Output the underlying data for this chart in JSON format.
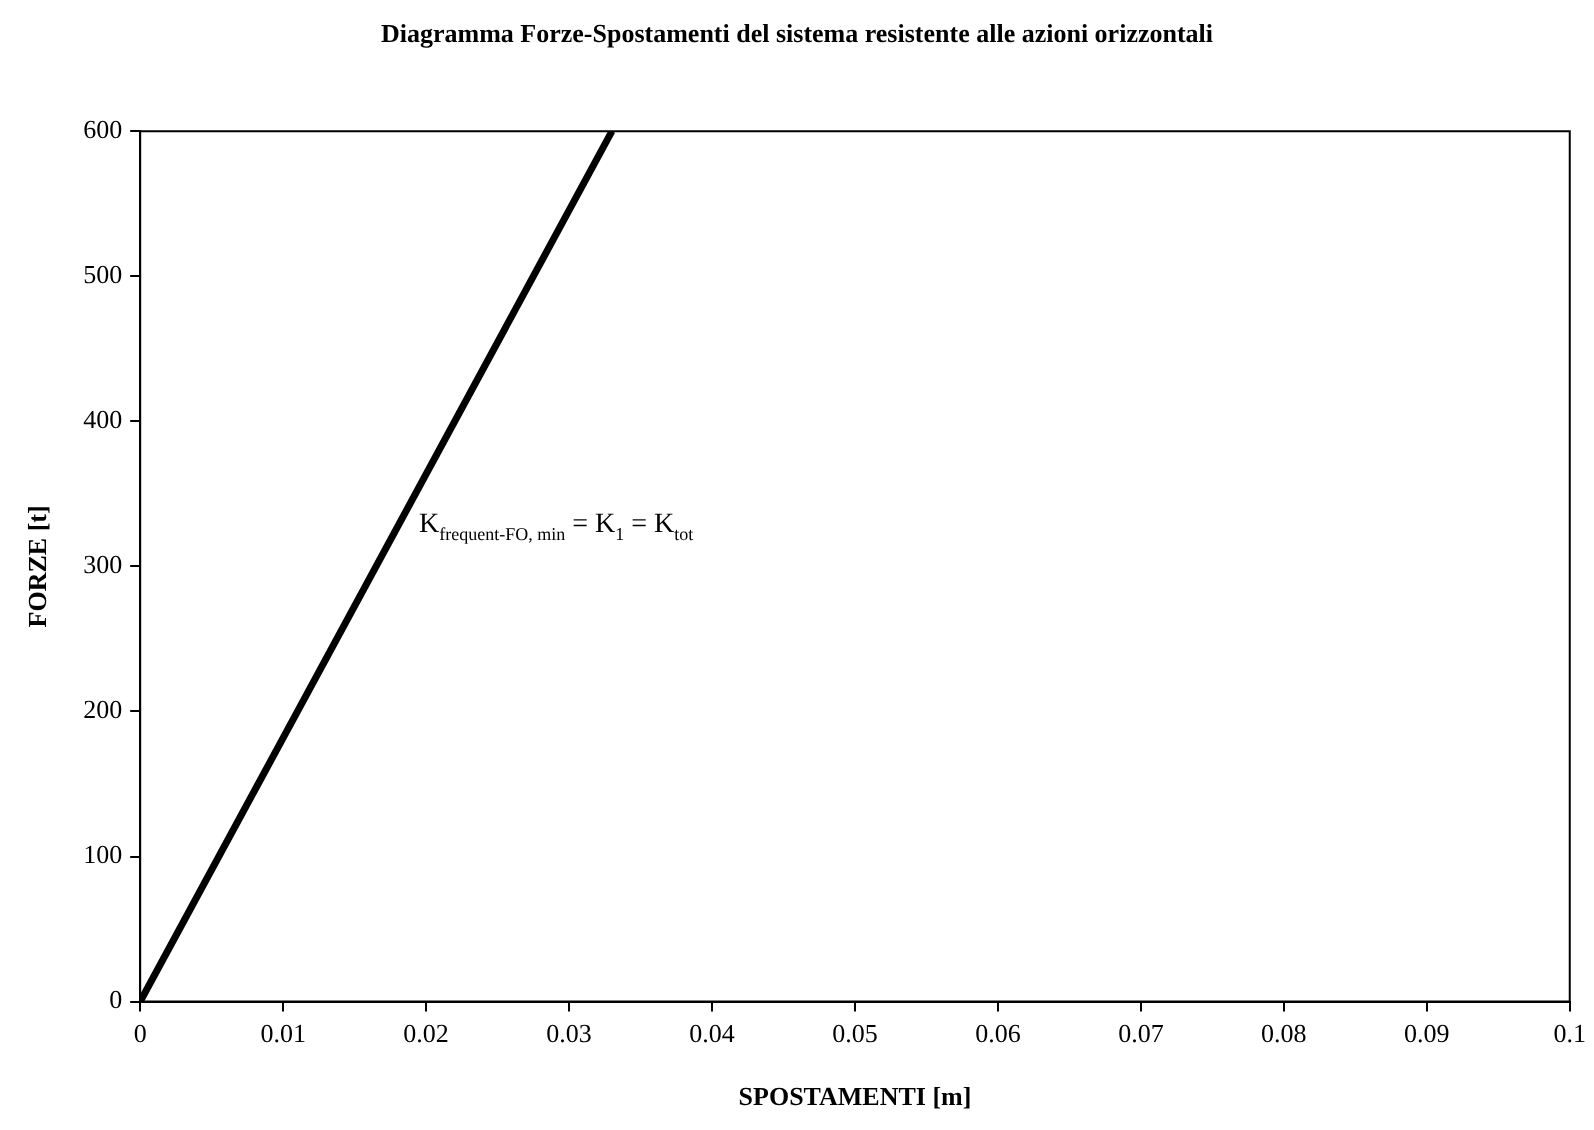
{
  "chart_data": {
    "type": "line",
    "title": "Diagramma Forze-Spostamenti del sistema resistente alle azioni orizzontali",
    "xlabel": "SPOSTAMENTI [m]",
    "ylabel": "FORZE [t]",
    "series": [
      {
        "x": [
          0,
          0.033
        ],
        "values": [
          0,
          600
        ],
        "color": "#000000"
      }
    ],
    "xlim": [
      0,
      0.1
    ],
    "xticks": [
      0,
      0.01,
      0.02,
      0.03,
      0.04,
      0.05,
      0.06,
      0.07,
      0.08,
      0.09,
      0.1
    ],
    "ylim": [
      0,
      600
    ],
    "yticks": [
      0,
      100,
      200,
      300,
      400,
      500,
      600
    ],
    "annotations": [
      "K$_{frequent-FO, min}$ = K$_{1}$ = K$_{tot}$"
    ],
    "grid": false,
    "legend": false,
    "marker": "none",
    "line_style": "solid"
  }
}
